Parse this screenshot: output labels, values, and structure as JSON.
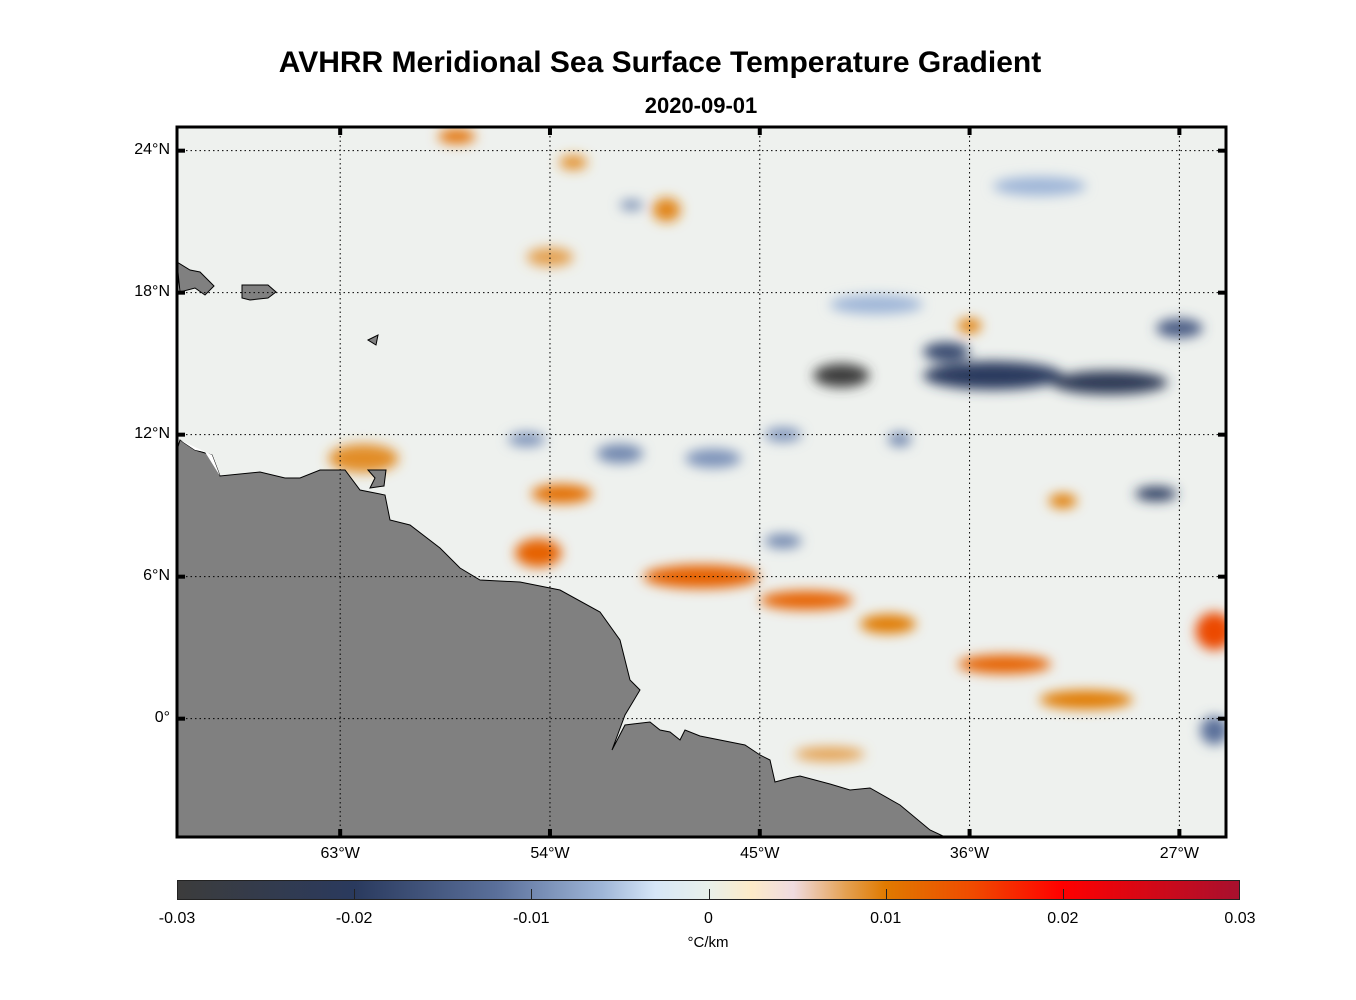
{
  "title": "AVHRR Meridional Sea Surface Temperature Gradient",
  "subtitle": "2020-09-01",
  "chart_data": {
    "type": "heatmap",
    "title": "AVHRR Meridional Sea Surface Temperature Gradient",
    "subtitle": "2020-09-01",
    "lon_range": [
      -70,
      -25
    ],
    "lat_range": [
      -5,
      25
    ],
    "lon_ticks": [
      {
        "v": -63,
        "label": "63°W"
      },
      {
        "v": -54,
        "label": "54°W"
      },
      {
        "v": -45,
        "label": "45°W"
      },
      {
        "v": -36,
        "label": "36°W"
      },
      {
        "v": -27,
        "label": "27°W"
      }
    ],
    "lat_ticks": [
      {
        "v": 24,
        "label": "24°N"
      },
      {
        "v": 18,
        "label": "18°N"
      },
      {
        "v": 12,
        "label": "12°N"
      },
      {
        "v": 6,
        "label": "6°N"
      },
      {
        "v": 0,
        "label": "0°"
      }
    ],
    "grid": true,
    "colorbar": {
      "range": [
        -0.03,
        0.03
      ],
      "ticks": [
        "-0.03",
        "-0.02",
        "-0.01",
        "0",
        "0.01",
        "0.02",
        "0.03"
      ],
      "label": "°C/km",
      "location": "bottom"
    },
    "features": [
      {
        "lon": -41.5,
        "lat": 14.5,
        "value": -0.03,
        "rx": 1.2,
        "ry": 0.5
      },
      {
        "lon": -35,
        "lat": 14.5,
        "value": -0.02,
        "rx": 3,
        "ry": 0.6
      },
      {
        "lon": -30,
        "lat": 14.2,
        "value": -0.022,
        "rx": 2.5,
        "ry": 0.5
      },
      {
        "lon": -37,
        "lat": 15.5,
        "value": -0.018,
        "rx": 1,
        "ry": 0.4
      },
      {
        "lon": -27,
        "lat": 16.5,
        "value": -0.015,
        "rx": 1,
        "ry": 0.4
      },
      {
        "lon": -28,
        "lat": 9.5,
        "value": -0.02,
        "rx": 0.9,
        "ry": 0.3
      },
      {
        "lon": -47.5,
        "lat": 6,
        "value": 0.012,
        "rx": 2.5,
        "ry": 0.5
      },
      {
        "lon": -43,
        "lat": 5,
        "value": 0.012,
        "rx": 2,
        "ry": 0.4
      },
      {
        "lon": -39.5,
        "lat": 4,
        "value": 0.01,
        "rx": 1.2,
        "ry": 0.4
      },
      {
        "lon": -34.5,
        "lat": 2.3,
        "value": 0.012,
        "rx": 2,
        "ry": 0.4
      },
      {
        "lon": -31,
        "lat": 0.8,
        "value": 0.01,
        "rx": 2,
        "ry": 0.4
      },
      {
        "lon": -25.5,
        "lat": 3.7,
        "value": 0.014,
        "rx": 0.8,
        "ry": 0.8
      },
      {
        "lon": -53.5,
        "lat": 9.5,
        "value": 0.011,
        "rx": 1.3,
        "ry": 0.4
      },
      {
        "lon": -54.5,
        "lat": 7,
        "value": 0.012,
        "rx": 1,
        "ry": 0.6
      },
      {
        "lon": -58,
        "lat": 24.6,
        "value": 0.011,
        "rx": 0.8,
        "ry": 0.3
      },
      {
        "lon": -49,
        "lat": 21.5,
        "value": 0.009,
        "rx": 0.6,
        "ry": 0.5
      },
      {
        "lon": -53,
        "lat": 23.5,
        "value": 0.008,
        "rx": 0.6,
        "ry": 0.3
      },
      {
        "lon": -62,
        "lat": 11,
        "value": 0.008,
        "rx": 1.5,
        "ry": 0.6
      },
      {
        "lon": -54,
        "lat": 19.5,
        "value": 0.006,
        "rx": 1,
        "ry": 0.4
      },
      {
        "lon": -51,
        "lat": 11.2,
        "value": -0.01,
        "rx": 1,
        "ry": 0.4
      },
      {
        "lon": -55,
        "lat": 11.8,
        "value": -0.009,
        "rx": 0.8,
        "ry": 0.3
      },
      {
        "lon": -44,
        "lat": 12,
        "value": -0.009,
        "rx": 0.8,
        "ry": 0.3
      },
      {
        "lon": -44,
        "lat": 7.5,
        "value": -0.01,
        "rx": 0.8,
        "ry": 0.3
      },
      {
        "lon": -47,
        "lat": 11,
        "value": -0.009,
        "rx": 1.2,
        "ry": 0.4
      },
      {
        "lon": -39,
        "lat": 11.8,
        "value": -0.01,
        "rx": 0.5,
        "ry": 0.3
      },
      {
        "lon": -50.5,
        "lat": 21.7,
        "value": -0.01,
        "rx": 0.5,
        "ry": 0.2
      },
      {
        "lon": -33,
        "lat": 22.5,
        "value": -0.006,
        "rx": 2,
        "ry": 0.4
      },
      {
        "lon": -40,
        "lat": 17.5,
        "value": -0.006,
        "rx": 2,
        "ry": 0.4
      },
      {
        "lon": -25.5,
        "lat": -0.5,
        "value": -0.012,
        "rx": 0.6,
        "ry": 0.6
      },
      {
        "lon": -42,
        "lat": -1.5,
        "value": 0.006,
        "rx": 1.5,
        "ry": 0.3
      },
      {
        "lon": -36,
        "lat": 16.6,
        "value": 0.01,
        "rx": 0.5,
        "ry": 0.3
      },
      {
        "lon": -32,
        "lat": 9.2,
        "value": 0.01,
        "rx": 0.6,
        "ry": 0.3
      }
    ]
  }
}
